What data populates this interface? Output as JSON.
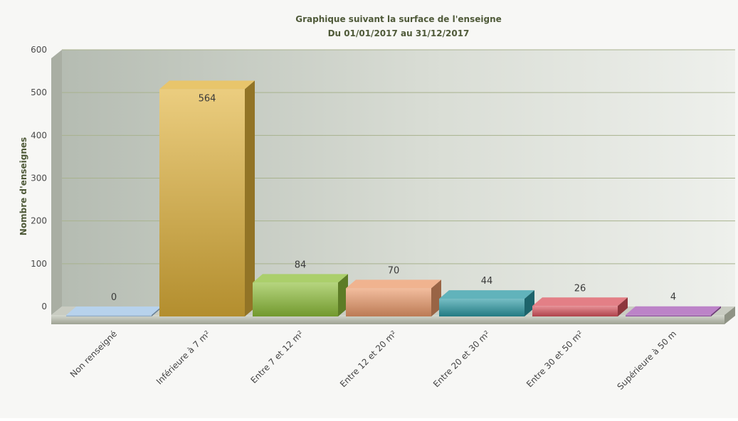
{
  "chart_data": {
    "type": "bar",
    "title": "Graphique suivant la surface de l'enseigne",
    "subtitle": "Du 01/01/2017 au 31/12/2017",
    "ylabel": "Nombre d'enseignes",
    "xlabel": "",
    "ylim": [
      0,
      600
    ],
    "yticks": [
      0,
      100,
      200,
      300,
      400,
      500,
      600
    ],
    "grid": true,
    "legend": "none",
    "categories": [
      "Non renseigné",
      "Inférieure à 7 m²",
      "Entre 7 et 12 m²",
      "Entre 12 et 20 m²",
      "Entre 20 et 30 m²",
      "Entre 30 et 50 m²",
      "Supérieure à 50 m"
    ],
    "values": [
      0,
      564,
      84,
      70,
      44,
      26,
      4
    ],
    "colors": [
      "#9fc3e6",
      "#e0b23a",
      "#8fbf3a",
      "#eb9a6a",
      "#2c9aa4",
      "#d9545e",
      "#a65ab6"
    ]
  }
}
